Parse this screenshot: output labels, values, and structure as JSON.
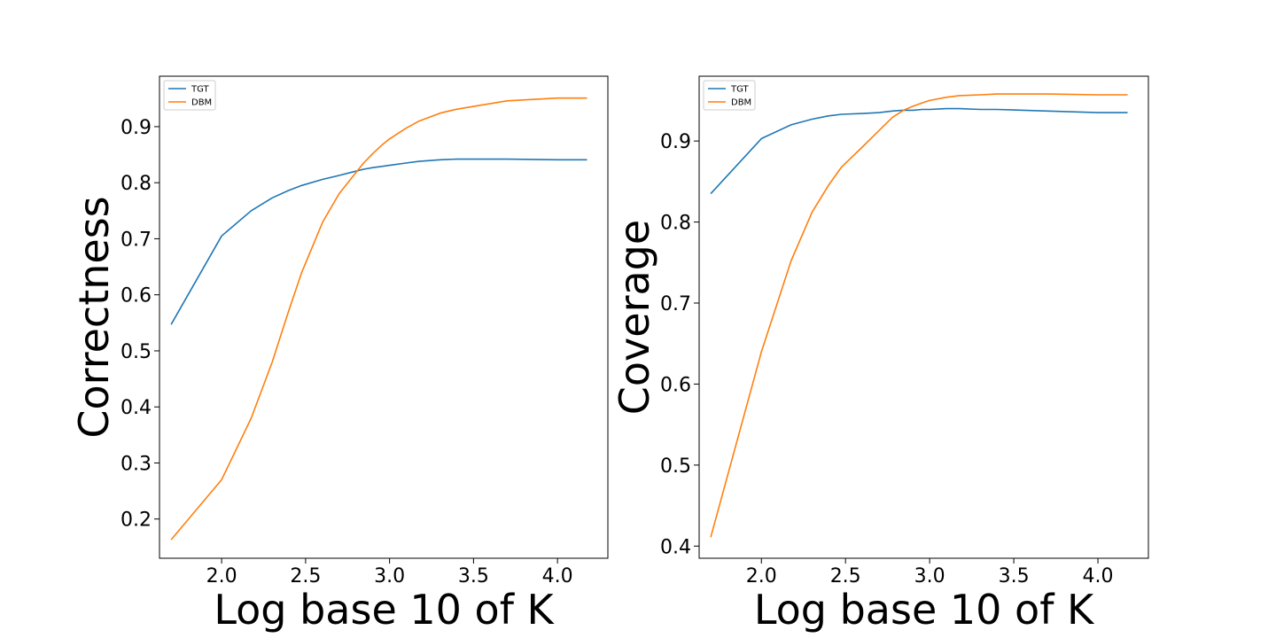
{
  "chart_data": [
    {
      "type": "line",
      "title": "",
      "xlabel": "Log base 10 of K",
      "ylabel": "Correctness",
      "xlim": [
        1.63,
        4.3
      ],
      "ylim": [
        0.13,
        0.99
      ],
      "xticks": [
        2.0,
        2.5,
        3.0,
        3.5,
        4.0
      ],
      "xtick_labels": [
        "2.0",
        "2.5",
        "3.0",
        "3.5",
        "4.0"
      ],
      "yticks": [
        0.2,
        0.3,
        0.4,
        0.5,
        0.6,
        0.7,
        0.8,
        0.9
      ],
      "ytick_labels": [
        "0.2",
        "0.3",
        "0.4",
        "0.5",
        "0.6",
        "0.7",
        "0.8",
        "0.9"
      ],
      "grid": false,
      "legend": "top-left",
      "series": [
        {
          "name": "TGT",
          "color": "#1f77b4",
          "x": [
            1.699,
            2.0,
            2.176,
            2.301,
            2.398,
            2.477,
            2.602,
            2.699,
            2.778,
            2.845,
            2.903,
            2.954,
            3.0,
            3.097,
            3.176,
            3.301,
            3.398,
            3.699,
            4.0,
            4.176
          ],
          "y": [
            0.547,
            0.705,
            0.75,
            0.773,
            0.786,
            0.795,
            0.806,
            0.813,
            0.819,
            0.824,
            0.827,
            0.829,
            0.831,
            0.835,
            0.838,
            0.841,
            0.842,
            0.842,
            0.841,
            0.841
          ]
        },
        {
          "name": "DBM",
          "color": "#ff7f0e",
          "x": [
            1.699,
            2.0,
            2.176,
            2.301,
            2.398,
            2.477,
            2.602,
            2.699,
            2.778,
            2.845,
            2.903,
            2.954,
            3.0,
            3.097,
            3.176,
            3.301,
            3.398,
            3.699,
            4.0,
            4.176
          ],
          "y": [
            0.163,
            0.27,
            0.38,
            0.48,
            0.57,
            0.64,
            0.73,
            0.78,
            0.81,
            0.835,
            0.853,
            0.867,
            0.878,
            0.897,
            0.91,
            0.924,
            0.931,
            0.946,
            0.951,
            0.951
          ]
        }
      ]
    },
    {
      "type": "line",
      "title": "",
      "xlabel": "Log base 10 of K",
      "ylabel": "Coverage",
      "xlim": [
        1.63,
        4.3
      ],
      "ylim": [
        0.385,
        0.98
      ],
      "xticks": [
        2.0,
        2.5,
        3.0,
        3.5,
        4.0
      ],
      "xtick_labels": [
        "2.0",
        "2.5",
        "3.0",
        "3.5",
        "4.0"
      ],
      "yticks": [
        0.4,
        0.5,
        0.6,
        0.7,
        0.8,
        0.9
      ],
      "ytick_labels": [
        "0.4",
        "0.5",
        "0.6",
        "0.7",
        "0.8",
        "0.9"
      ],
      "grid": false,
      "legend": "top-left",
      "series": [
        {
          "name": "TGT",
          "color": "#1f77b4",
          "x": [
            1.699,
            2.0,
            2.176,
            2.301,
            2.398,
            2.477,
            2.602,
            2.699,
            2.778,
            2.845,
            2.903,
            2.954,
            3.0,
            3.097,
            3.176,
            3.301,
            3.398,
            3.699,
            4.0,
            4.176
          ],
          "y": [
            0.835,
            0.903,
            0.92,
            0.927,
            0.931,
            0.933,
            0.934,
            0.935,
            0.937,
            0.938,
            0.938,
            0.939,
            0.939,
            0.94,
            0.94,
            0.939,
            0.939,
            0.937,
            0.935,
            0.935
          ]
        },
        {
          "name": "DBM",
          "color": "#ff7f0e",
          "x": [
            1.699,
            2.0,
            2.176,
            2.301,
            2.398,
            2.477,
            2.602,
            2.699,
            2.778,
            2.845,
            2.903,
            2.954,
            3.0,
            3.097,
            3.176,
            3.301,
            3.398,
            3.699,
            4.0,
            4.176
          ],
          "y": [
            0.411,
            0.64,
            0.752,
            0.812,
            0.845,
            0.868,
            0.893,
            0.913,
            0.929,
            0.938,
            0.943,
            0.947,
            0.95,
            0.954,
            0.956,
            0.957,
            0.958,
            0.958,
            0.957,
            0.957
          ]
        }
      ]
    }
  ]
}
